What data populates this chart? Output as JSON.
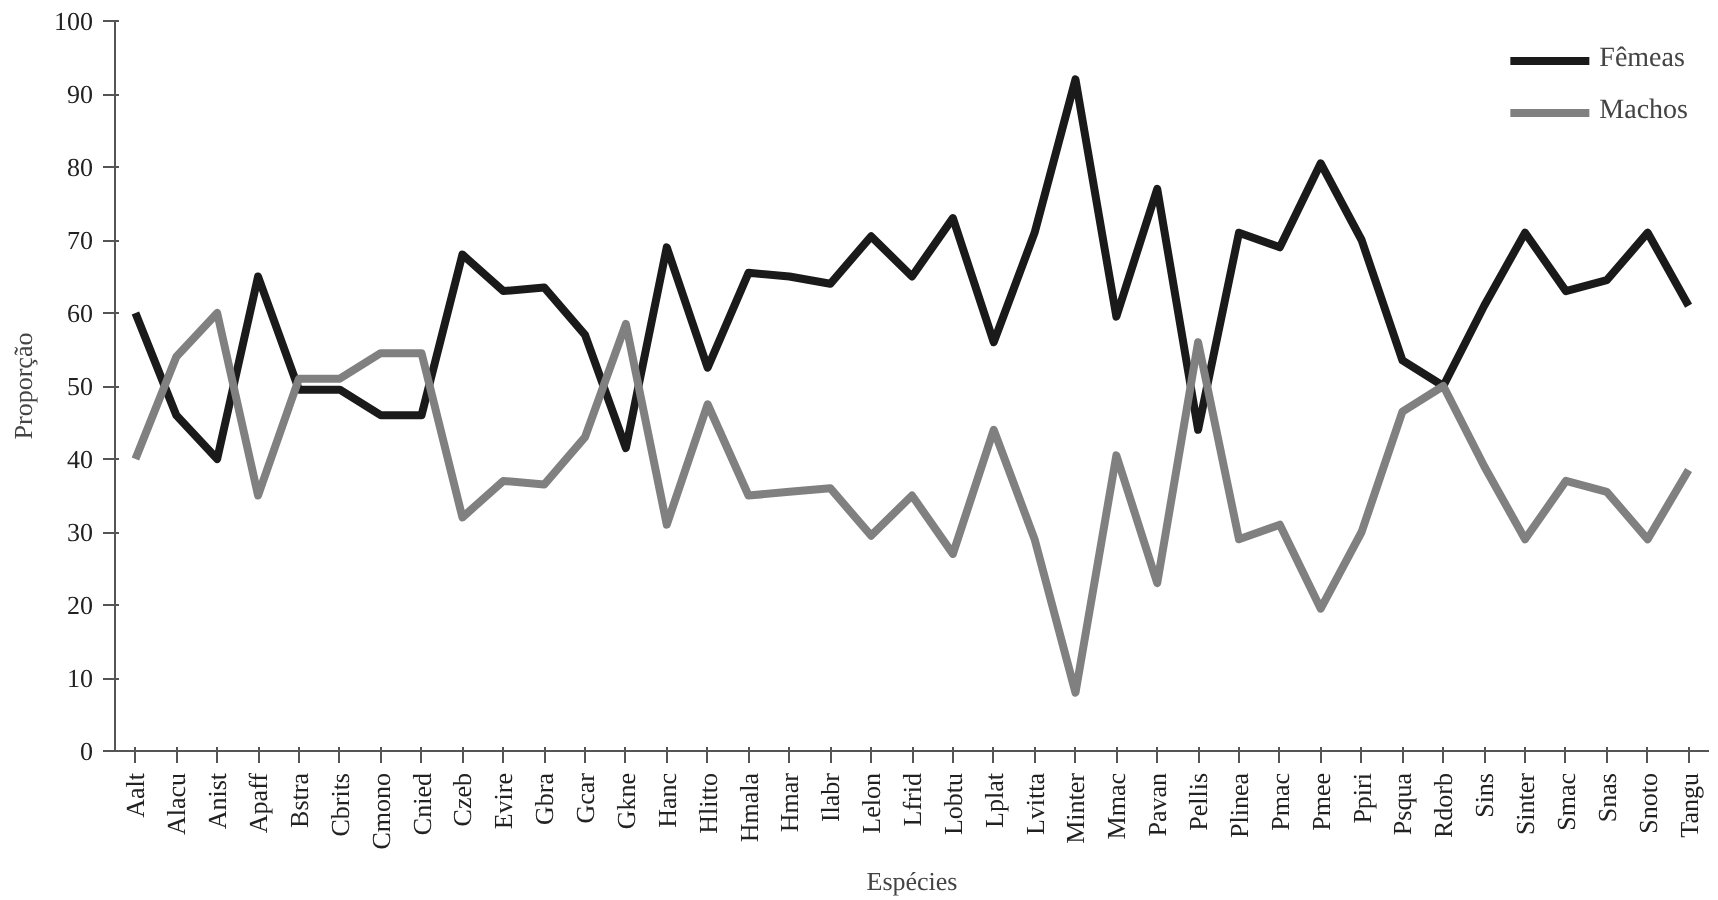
{
  "chart_data": {
    "type": "line",
    "xlabel": "Espécies",
    "ylabel": "Proporção",
    "categories": [
      "Aalt",
      "Alacu",
      "Anist",
      "Apaff",
      "Bstra",
      "Cbrits",
      "Cmono",
      "Cnied",
      "Czeb",
      "Evire",
      "Gbra",
      "Gcar",
      "Gkne",
      "Hanc",
      "Hlitto",
      "Hmala",
      "Hmar",
      "Ilabr",
      "Lelon",
      "Lfrid",
      "Lobtu",
      "Lplat",
      "Lvitta",
      "Minter",
      "Mmac",
      "Pavan",
      "Pellis",
      "Plinea",
      "Pmac",
      "Pmee",
      "Ppiri",
      "Psqua",
      "Rdorb",
      "Sins",
      "Sinter",
      "Smac",
      "Snas",
      "Snoto",
      "Tangu"
    ],
    "series": [
      {
        "name": "Fêmeas",
        "color": "#1a1a1a",
        "values": [
          60,
          46,
          40,
          65,
          49.5,
          49.5,
          46,
          46,
          68,
          63,
          63.5,
          57,
          41.5,
          69,
          52.5,
          65.5,
          65,
          64,
          70.5,
          65,
          73,
          56,
          71,
          92,
          59.5,
          77,
          44,
          71,
          69,
          80.5,
          70,
          53.5,
          50,
          61,
          71,
          63,
          64.5,
          71,
          61
        ]
      },
      {
        "name": "Machos",
        "color": "#808080",
        "values": [
          40,
          54,
          60,
          35,
          51,
          51,
          54.5,
          54.5,
          32,
          37,
          36.5,
          43,
          58.5,
          31,
          47.5,
          35,
          35.5,
          36,
          29.5,
          35,
          27,
          44,
          29,
          8,
          40.5,
          23,
          56,
          29,
          31,
          19.5,
          30,
          46.5,
          50,
          39,
          29,
          37,
          35.5,
          29,
          38.5
        ]
      }
    ],
    "ylim": [
      0,
      100
    ],
    "yticks": [
      0,
      10,
      20,
      30,
      40,
      50,
      60,
      70,
      80,
      90,
      100
    ],
    "legend": "top right",
    "grid": false,
    "marker": "none",
    "line_style": "solid"
  }
}
